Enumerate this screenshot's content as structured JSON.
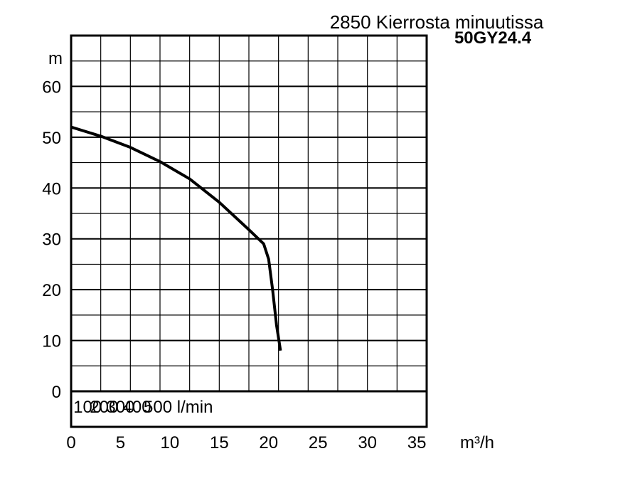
{
  "header": {
    "speed_label": "2850 Kierrosta minuutissa",
    "model_label": "50GY24.4"
  },
  "chart_data": {
    "type": "line",
    "title": "",
    "ylabel": "m",
    "xlabel": "m³/h",
    "secondary_x_unit_label": "l/min",
    "ylim": [
      -7,
      70
    ],
    "xlim": [
      0,
      36
    ],
    "y_ticks": [
      "0",
      "10",
      "20",
      "30",
      "40",
      "50",
      "60"
    ],
    "x_ticks": [
      "0",
      "5",
      "10",
      "15",
      "20",
      "25",
      "30",
      "35"
    ],
    "secondary_x_ticks": [
      "100",
      "200",
      "300",
      "400",
      "500"
    ],
    "grid": true,
    "series": [
      {
        "x": [
          0,
          3,
          6,
          9,
          12,
          15,
          18,
          19.5,
          20,
          20.4,
          20.8,
          21.2
        ],
        "y": [
          52,
          50.2,
          48,
          45.2,
          41.8,
          37.2,
          31.8,
          29,
          26,
          20,
          13,
          8
        ],
        "color": "#000000"
      }
    ]
  }
}
